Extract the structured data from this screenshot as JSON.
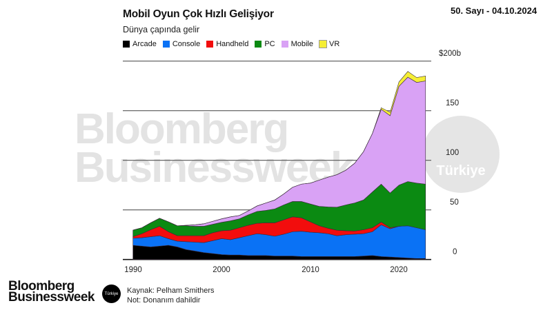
{
  "header": {
    "issue": "50. Sayı - 04.10.2024"
  },
  "watermark": {
    "line1": "Bloomberg",
    "line2": "Businessweek",
    "badge": "Türkiye"
  },
  "footer": {
    "logo_line1": "Bloomberg",
    "logo_line2": "Businessweek",
    "logo_badge": "Türkiye",
    "source": "Kaynak: Pelham Smithers",
    "note": "Not: Donanım dahildir"
  },
  "chart_data": {
    "type": "area",
    "stacked": true,
    "title": "Mobil Oyun Çok Hızlı Gelişiyor",
    "subtitle": "Dünya çapında gelir",
    "legend_position": "top-left",
    "grid": true,
    "ylim": [
      0,
      200
    ],
    "xlim": [
      1990,
      2023
    ],
    "yticks": [
      {
        "value": 200,
        "label": "$200b"
      },
      {
        "value": 150,
        "label": "150"
      },
      {
        "value": 100,
        "label": "100"
      },
      {
        "value": 50,
        "label": "50"
      },
      {
        "value": 0,
        "label": "0"
      }
    ],
    "xticks": [
      {
        "value": 1990,
        "label": "1990"
      },
      {
        "value": 2000,
        "label": "2000"
      },
      {
        "value": 2010,
        "label": "2010"
      },
      {
        "value": 2020,
        "label": "2020"
      }
    ],
    "x": [
      1990,
      1991,
      1992,
      1993,
      1994,
      1995,
      1996,
      1997,
      1998,
      1999,
      2000,
      2001,
      2002,
      2003,
      2004,
      2005,
      2006,
      2007,
      2008,
      2009,
      2010,
      2011,
      2012,
      2013,
      2014,
      2015,
      2016,
      2017,
      2018,
      2019,
      2020,
      2021,
      2022,
      2023
    ],
    "series": [
      {
        "name": "Arcade",
        "color": "#000000",
        "values": [
          14.3,
          13.5,
          12.7,
          13.5,
          14.3,
          12.7,
          10,
          8.5,
          7,
          6,
          5,
          4.5,
          4.5,
          4,
          4,
          4,
          3.5,
          3.5,
          3.5,
          3,
          3,
          3,
          3,
          3,
          3,
          3,
          3.5,
          4,
          3,
          2.5,
          2,
          1.5,
          1,
          1
        ]
      },
      {
        "name": "Console",
        "color": "#0a72f5",
        "values": [
          7.2,
          8.5,
          10.3,
          10.5,
          6.7,
          5.8,
          8,
          9,
          10,
          13,
          16,
          15.5,
          17.5,
          20,
          22,
          21,
          20,
          22,
          24.5,
          25.5,
          24.5,
          24,
          23,
          21,
          22,
          22.5,
          22.5,
          24,
          32,
          28.5,
          31.5,
          32.5,
          31,
          29
        ]
      },
      {
        "name": "Handheld",
        "color": "#f20d0d",
        "values": [
          1.5,
          4,
          7,
          9.5,
          7,
          5.5,
          6,
          6.5,
          7,
          8,
          8,
          9.5,
          10,
          10.5,
          10.5,
          12,
          13.5,
          14.5,
          15,
          13.5,
          10.5,
          7,
          5.5,
          5.5,
          4,
          3.2,
          4,
          4,
          2.7,
          1,
          0,
          0,
          0,
          0
        ]
      },
      {
        "name": "PC",
        "color": "#0b8a12",
        "values": [
          6.6,
          6,
          7,
          8.1,
          10,
          10,
          10,
          9.5,
          9.5,
          8.5,
          8.5,
          9.5,
          9,
          10.5,
          12,
          12.5,
          14,
          15,
          15.5,
          16.5,
          18,
          19.6,
          21.5,
          23.2,
          26,
          28.3,
          30,
          36,
          38.3,
          35,
          41.5,
          44.6,
          45,
          46
        ]
      },
      {
        "name": "Mobile",
        "color": "#d9a2f5",
        "values": [
          0,
          0,
          0,
          0,
          0,
          0,
          0.5,
          1.5,
          2.5,
          3,
          3.5,
          4,
          3.4,
          4,
          5.5,
          7.5,
          9,
          11,
          14.3,
          17.5,
          21,
          26.4,
          30,
          32.8,
          35,
          40,
          48.7,
          59,
          75.4,
          78,
          99.6,
          105.2,
          101.5,
          104
        ]
      },
      {
        "name": "VR",
        "color": "#f5ee35",
        "values": [
          0,
          0,
          0,
          0,
          0,
          0,
          0,
          0,
          0,
          0,
          0,
          0,
          0,
          0,
          0,
          0,
          0,
          0,
          0,
          0,
          0,
          0,
          0,
          0,
          0,
          0,
          0,
          0,
          1.6,
          3.4,
          4.4,
          5.8,
          4.9,
          5
        ]
      }
    ]
  }
}
